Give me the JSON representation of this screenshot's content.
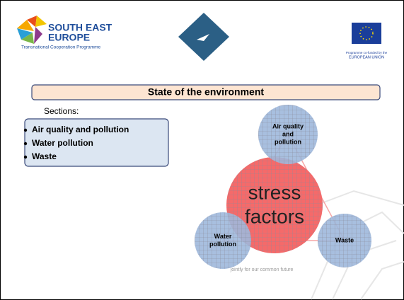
{
  "header": {
    "logo_left": {
      "line1": "SOUTH EAST",
      "line2": "EUROPE",
      "subtitle": "Transnational Cooperation Programme"
    },
    "logo_right": {
      "line1": "Programme co-funded by the",
      "line2": "EUROPEAN UNION"
    }
  },
  "title": "State of the environment",
  "sections_label": "Sections:",
  "sections": [
    "Air quality and pollution",
    "Water pollution",
    "Waste"
  ],
  "diagram": {
    "center": [
      "stress",
      "factors"
    ],
    "nodes": [
      {
        "label": [
          "Air quality",
          "and",
          "pollution"
        ]
      },
      {
        "label": [
          "Water",
          "pollution"
        ]
      },
      {
        "label": [
          "Waste"
        ]
      }
    ]
  },
  "footer": {
    "tagline": "jointly for our common future"
  }
}
